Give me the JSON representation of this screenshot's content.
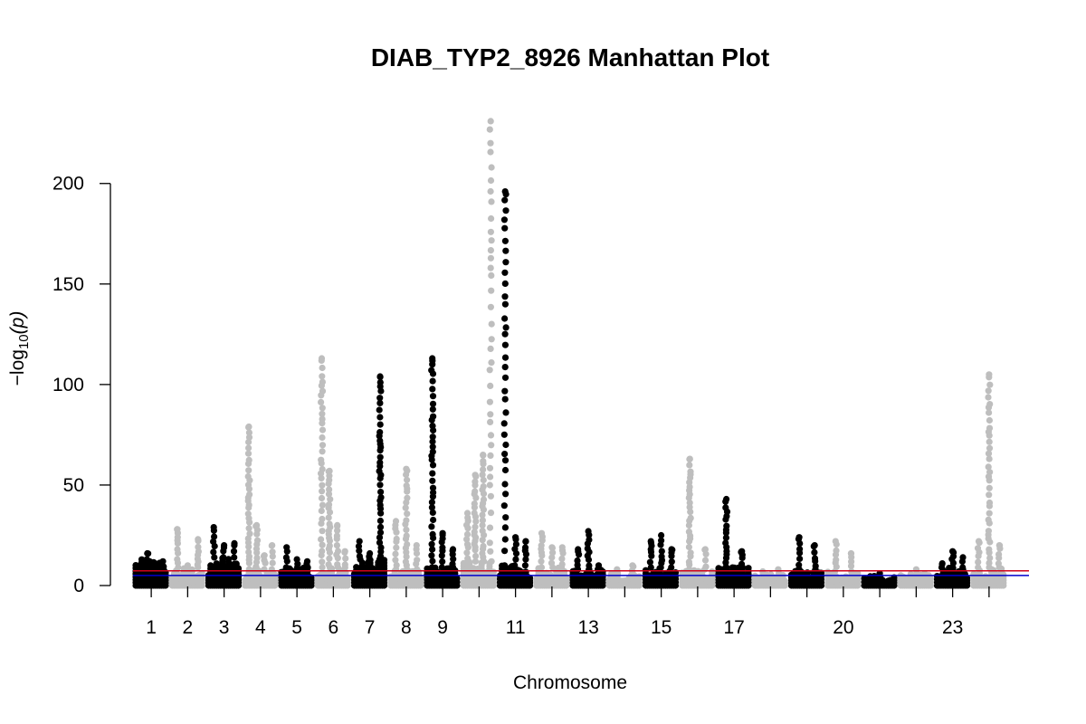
{
  "chart_data": {
    "type": "scatter",
    "title": "DIAB_TYP2_8926 Manhattan Plot",
    "xlabel": "Chromosome",
    "ylabel_prefix": "−log",
    "ylabel_sub": "10",
    "ylabel_arg": "(p)",
    "ylim": [
      0,
      235
    ],
    "yticks": [
      0,
      50,
      100,
      150,
      200
    ],
    "grid": false,
    "colors": {
      "odd": "#000000",
      "even": "#bebebe",
      "suggestive_line": "#0000cd",
      "genomewide_line": "#d0021b"
    },
    "thresholds": {
      "suggestive": 5,
      "genomewide": 7.3
    },
    "chromosomes": [
      {
        "chr": 1,
        "label": "1",
        "floor": 13,
        "peaks": [
          10,
          16,
          11,
          12
        ]
      },
      {
        "chr": 2,
        "label": "2",
        "floor": 9,
        "peaks": [
          28,
          10,
          23
        ]
      },
      {
        "chr": 3,
        "label": "3",
        "floor": 14,
        "peaks": [
          29,
          20,
          21
        ]
      },
      {
        "chr": 4,
        "label": "4",
        "floor": 8,
        "peaks": [
          79,
          30,
          15,
          20
        ]
      },
      {
        "chr": 5,
        "label": "5",
        "floor": 9,
        "peaks": [
          19,
          13,
          12
        ]
      },
      {
        "chr": 6,
        "label": "6",
        "floor": 9,
        "peaks": [
          113,
          57,
          30,
          17
        ]
      },
      {
        "chr": 7,
        "label": "7",
        "floor": 13,
        "peaks": [
          22,
          16,
          104
        ]
      },
      {
        "chr": 8,
        "label": "8",
        "floor": 8,
        "peaks": [
          32,
          58,
          20
        ]
      },
      {
        "chr": 9,
        "label": "9",
        "floor": 9,
        "peaks": [
          113,
          26,
          18
        ]
      },
      {
        "chr": 10,
        "label": "",
        "floor": 12,
        "peaks": [
          36,
          55,
          65,
          231
        ]
      },
      {
        "chr": 11,
        "label": "11",
        "floor": 10,
        "peaks": [
          196,
          24,
          22
        ]
      },
      {
        "chr": 12,
        "label": "",
        "floor": 9,
        "peaks": [
          26,
          19,
          19
        ]
      },
      {
        "chr": 13,
        "label": "13",
        "floor": 8,
        "peaks": [
          18,
          27,
          10
        ]
      },
      {
        "chr": 14,
        "label": "",
        "floor": 6,
        "peaks": [
          8,
          10
        ]
      },
      {
        "chr": 15,
        "label": "15",
        "floor": 9,
        "peaks": [
          22,
          25,
          18
        ]
      },
      {
        "chr": 16,
        "label": "",
        "floor": 8,
        "peaks": [
          63,
          18
        ]
      },
      {
        "chr": 17,
        "label": "17",
        "floor": 9,
        "peaks": [
          43,
          17
        ]
      },
      {
        "chr": 18,
        "label": "",
        "floor": 6,
        "peaks": [
          7,
          8
        ]
      },
      {
        "chr": 19,
        "label": "",
        "floor": 8,
        "peaks": [
          24,
          20
        ]
      },
      {
        "chr": 20,
        "label": "20",
        "floor": 7,
        "peaks": [
          22,
          16
        ]
      },
      {
        "chr": 21,
        "label": "",
        "floor": 5,
        "peaks": [
          6
        ]
      },
      {
        "chr": 22,
        "label": "",
        "floor": 6,
        "peaks": [
          8
        ]
      },
      {
        "chr": 23,
        "label": "23",
        "floor": 9,
        "peaks": [
          11,
          17,
          14
        ]
      },
      {
        "chr": 24,
        "label": "",
        "floor": 9,
        "peaks": [
          22,
          105,
          20
        ]
      }
    ]
  }
}
